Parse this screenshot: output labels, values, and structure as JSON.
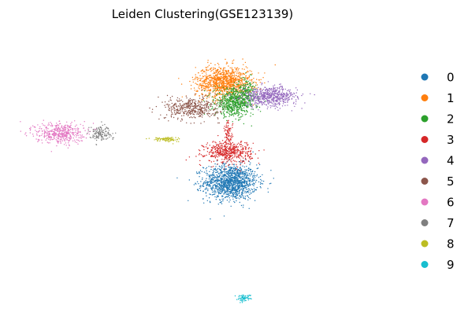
{
  "chart_data": {
    "type": "scatter",
    "title": "Leiden Clustering(GSE123139)",
    "xlabel": "",
    "ylabel": "",
    "axes_visible": false,
    "grid": false,
    "legend_position": "right",
    "xlim": [
      0,
      100
    ],
    "ylim": [
      0,
      100
    ],
    "series": [
      {
        "name": "0",
        "color": "#1f77b4",
        "clusters": [
          {
            "cx": 57.2,
            "cy": 46.0,
            "sx": 4.9,
            "sy": 4.2,
            "n": 1300
          }
        ]
      },
      {
        "name": "1",
        "color": "#ff7f0e",
        "clusters": [
          {
            "cx": 55.3,
            "cy": 81.8,
            "sx": 5.2,
            "sy": 3.8,
            "n": 1100
          }
        ]
      },
      {
        "name": "2",
        "color": "#2ca02c",
        "clusters": [
          {
            "cx": 58.3,
            "cy": 74.6,
            "sx": 3.7,
            "sy": 3.3,
            "n": 700
          },
          {
            "cx": 61.5,
            "cy": 78.8,
            "sx": 1.5,
            "sy": 3.0,
            "n": 120
          }
        ]
      },
      {
        "name": "3",
        "color": "#d62728",
        "clusters": [
          {
            "cx": 56.5,
            "cy": 56.8,
            "sx": 4.3,
            "sy": 2.6,
            "n": 500
          },
          {
            "cx": 56.5,
            "cy": 63.5,
            "sx": 0.8,
            "sy": 2.8,
            "n": 80
          }
        ]
      },
      {
        "name": "4",
        "color": "#9467bd",
        "clusters": [
          {
            "cx": 68.0,
            "cy": 76.7,
            "sx": 5.0,
            "sy": 2.3,
            "n": 600
          }
        ]
      },
      {
        "name": "5",
        "color": "#8c564b",
        "clusters": [
          {
            "cx": 46.5,
            "cy": 72.5,
            "sx": 5.0,
            "sy": 2.6,
            "n": 450
          }
        ]
      },
      {
        "name": "6",
        "color": "#e377c2",
        "clusters": [
          {
            "cx": 10.0,
            "cy": 63.6,
            "sx": 4.5,
            "sy": 2.5,
            "n": 450
          }
        ]
      },
      {
        "name": "7",
        "color": "#7f7f7f",
        "clusters": [
          {
            "cx": 21.2,
            "cy": 63.6,
            "sx": 2.1,
            "sy": 1.8,
            "n": 140
          }
        ]
      },
      {
        "name": "8",
        "color": "#bcbd22",
        "clusters": [
          {
            "cx": 39.3,
            "cy": 61.3,
            "sx": 2.6,
            "sy": 0.6,
            "n": 90
          }
        ]
      },
      {
        "name": "9",
        "color": "#17becf",
        "clusters": [
          {
            "cx": 60.8,
            "cy": 4.5,
            "sx": 1.3,
            "sy": 0.8,
            "n": 70
          }
        ]
      }
    ]
  }
}
